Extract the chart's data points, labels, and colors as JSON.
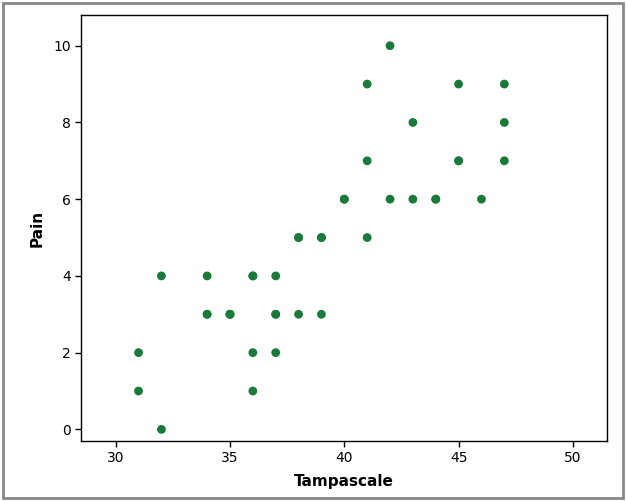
{
  "points": [
    [
      31,
      1
    ],
    [
      31,
      2
    ],
    [
      32,
      0
    ],
    [
      32,
      4
    ],
    [
      34,
      3
    ],
    [
      34,
      3
    ],
    [
      34,
      4
    ],
    [
      35,
      3
    ],
    [
      35,
      3
    ],
    [
      35,
      3
    ],
    [
      36,
      1
    ],
    [
      36,
      2
    ],
    [
      36,
      4
    ],
    [
      36,
      4
    ],
    [
      37,
      2
    ],
    [
      37,
      3
    ],
    [
      37,
      3
    ],
    [
      37,
      4
    ],
    [
      38,
      3
    ],
    [
      38,
      5
    ],
    [
      38,
      5
    ],
    [
      39,
      3
    ],
    [
      39,
      5
    ],
    [
      39,
      5
    ],
    [
      40,
      6
    ],
    [
      40,
      6
    ],
    [
      41,
      5
    ],
    [
      41,
      7
    ],
    [
      41,
      9
    ],
    [
      42,
      6
    ],
    [
      42,
      10
    ],
    [
      43,
      6
    ],
    [
      43,
      8
    ],
    [
      44,
      6
    ],
    [
      44,
      6
    ],
    [
      45,
      7
    ],
    [
      45,
      7
    ],
    [
      45,
      9
    ],
    [
      46,
      6
    ],
    [
      47,
      7
    ],
    [
      47,
      8
    ],
    [
      47,
      9
    ]
  ],
  "xlabel": "Tampascale",
  "ylabel": "Pain",
  "xlim": [
    28.5,
    51.5
  ],
  "ylim": [
    -0.3,
    10.8
  ],
  "xticks": [
    30,
    35,
    40,
    45,
    50
  ],
  "yticks": [
    0,
    2,
    4,
    6,
    8,
    10
  ],
  "dot_color": "#1a7a3a",
  "dot_size": 40,
  "xlabel_fontsize": 11,
  "ylabel_fontsize": 11,
  "tick_fontsize": 10,
  "background_color": "#ffffff",
  "outer_border_color": "#888888",
  "spine_color": "#000000"
}
